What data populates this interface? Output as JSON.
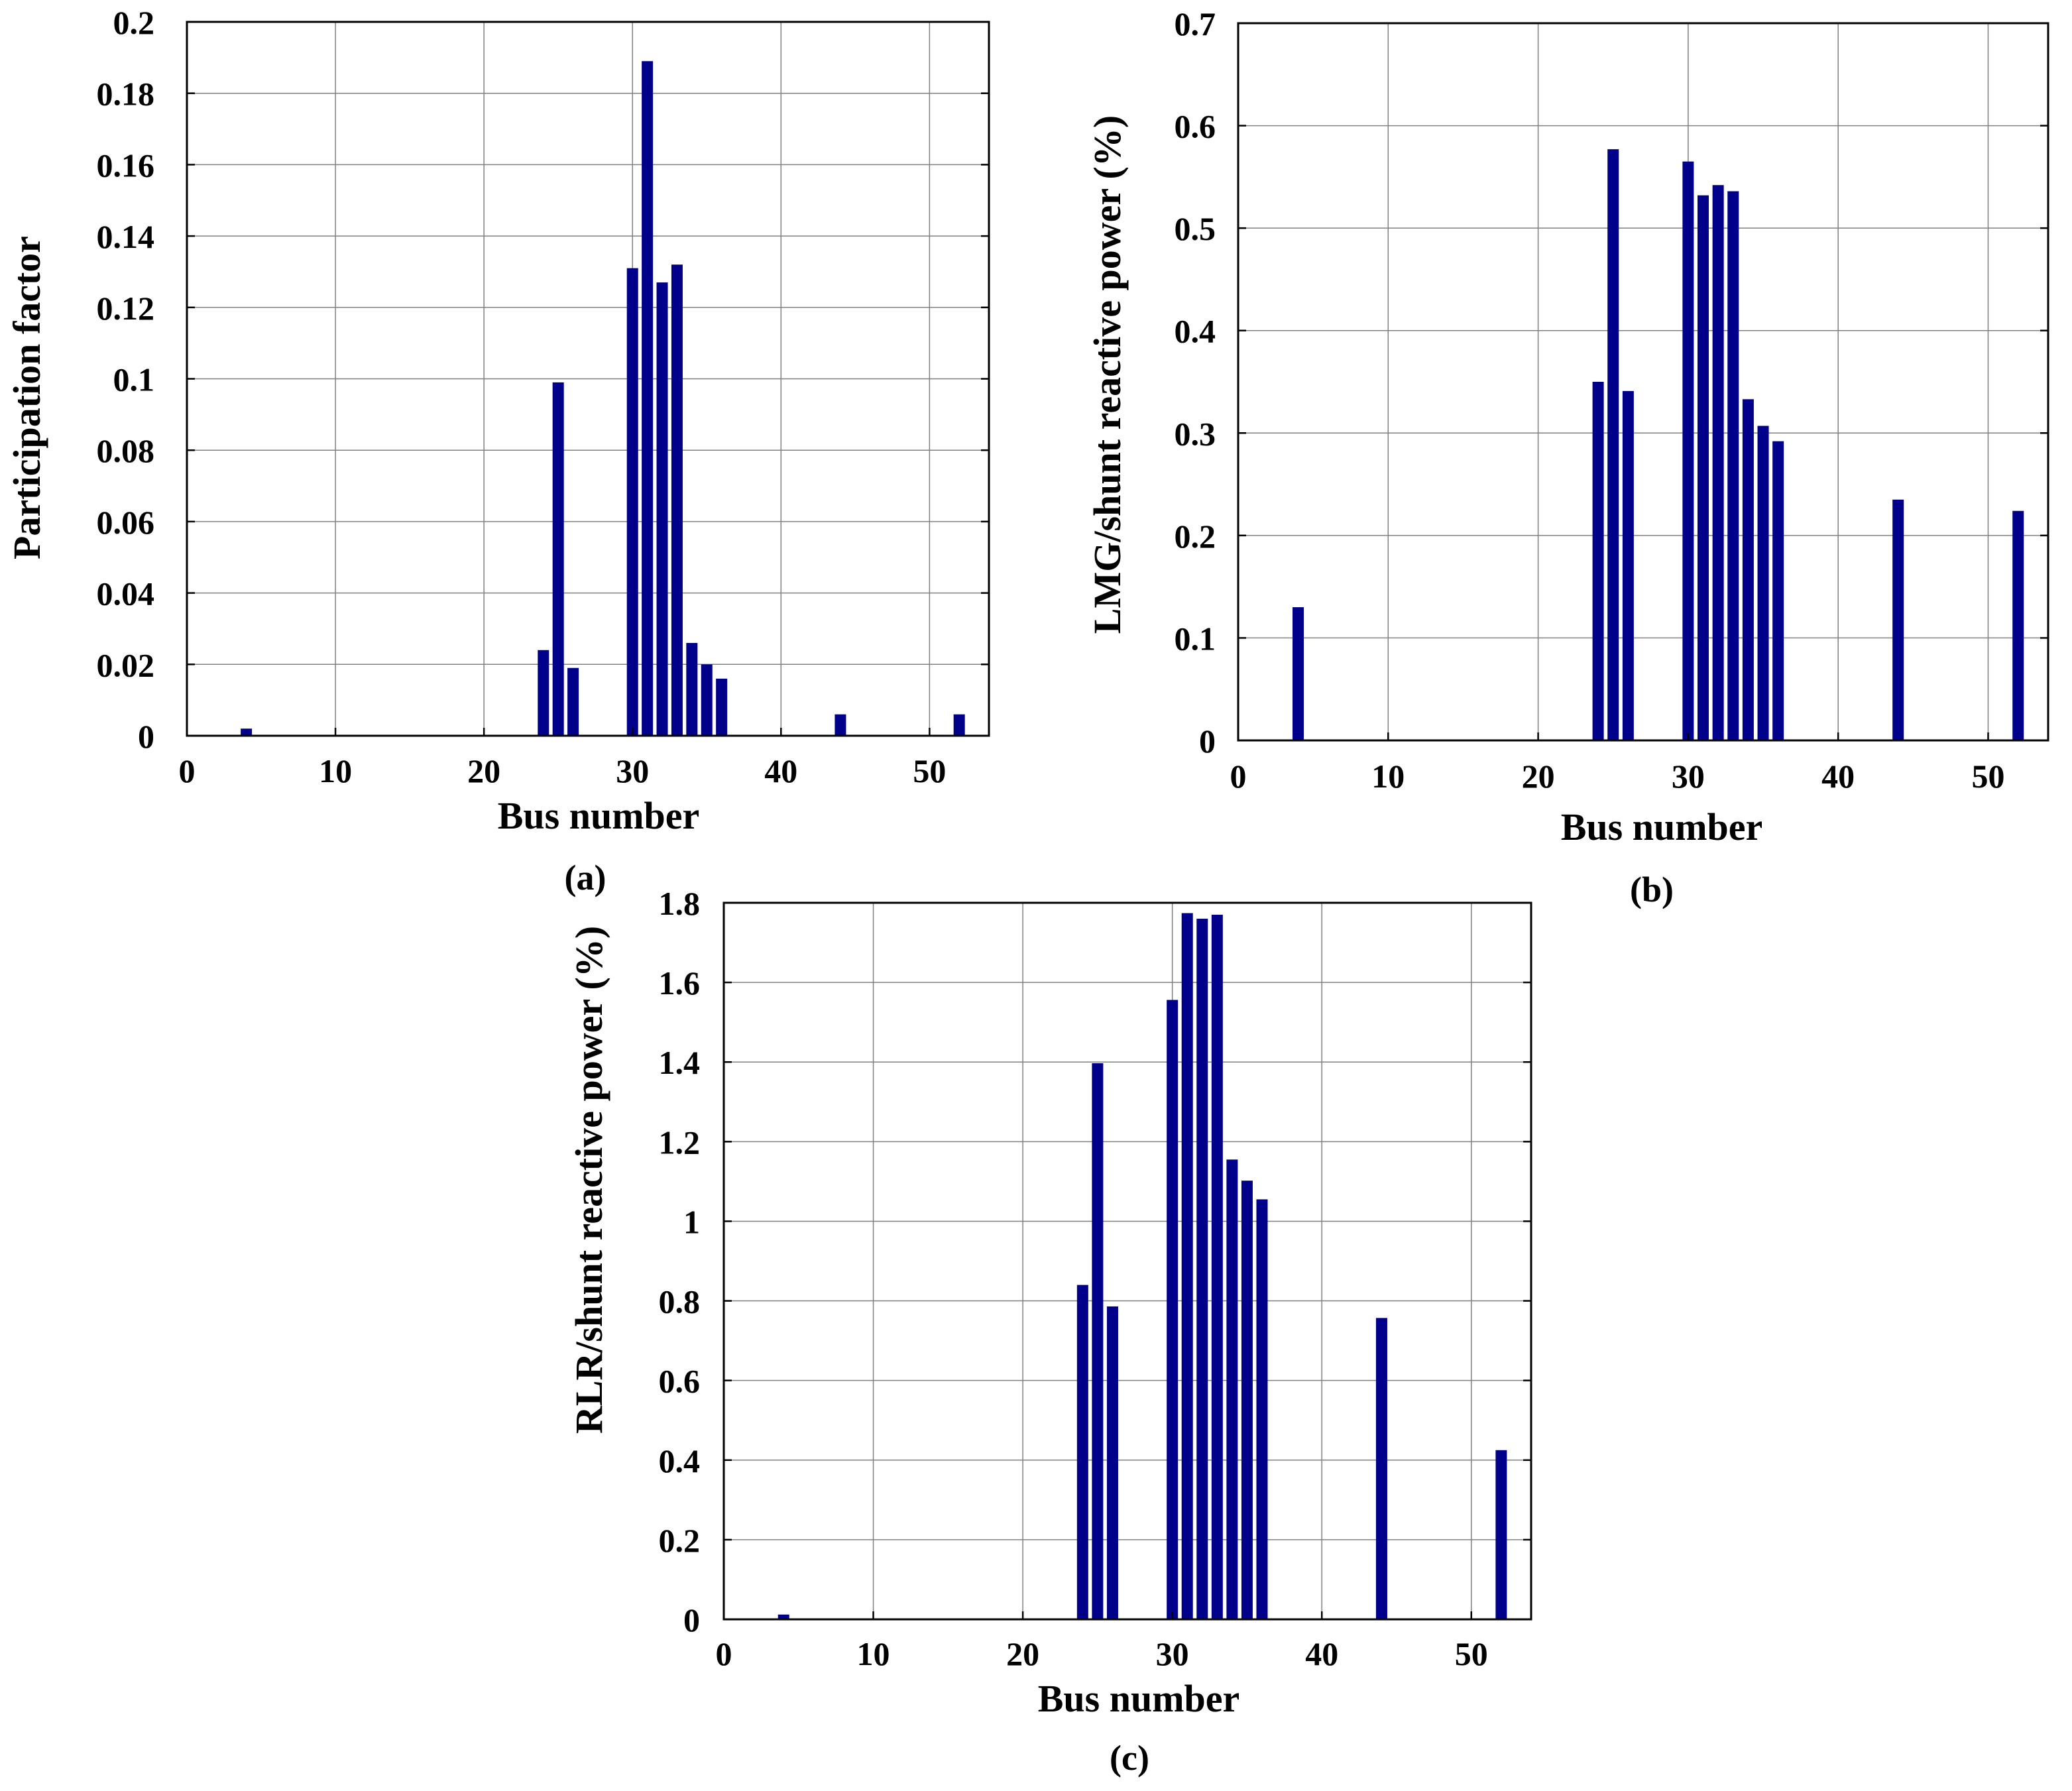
{
  "colors": {
    "bar": "#00008b",
    "grid": "#808080",
    "axis": "#000000"
  },
  "chart_data": [
    {
      "type": "bar",
      "caption": "(a)",
      "xlabel": "Bus number",
      "ylabel": "Participation factor",
      "xlim": [
        0,
        54
      ],
      "ylim": [
        0,
        0.2
      ],
      "xticks": [
        0,
        10,
        20,
        30,
        40,
        50
      ],
      "xtick_labels": [
        "0",
        "10",
        "20",
        "30",
        "40",
        "50"
      ],
      "yticks": [
        0,
        0.02,
        0.04,
        0.06,
        0.08,
        0.1,
        0.12,
        0.14,
        0.16,
        0.18,
        0.2
      ],
      "ytick_labels": [
        "0",
        "0.02",
        "0.04",
        "0.06",
        "0.08",
        "0.1",
        "0.12",
        "0.14",
        "0.16",
        "0.18",
        "0.2"
      ],
      "grid": true,
      "bars": [
        {
          "bus": 4,
          "value": 0.002
        },
        {
          "bus": 24,
          "value": 0.024
        },
        {
          "bus": 25,
          "value": 0.099
        },
        {
          "bus": 26,
          "value": 0.019
        },
        {
          "bus": 30,
          "value": 0.131
        },
        {
          "bus": 31,
          "value": 0.189
        },
        {
          "bus": 32,
          "value": 0.127
        },
        {
          "bus": 33,
          "value": 0.132
        },
        {
          "bus": 34,
          "value": 0.026
        },
        {
          "bus": 35,
          "value": 0.02
        },
        {
          "bus": 36,
          "value": 0.016
        },
        {
          "bus": 44,
          "value": 0.006
        },
        {
          "bus": 52,
          "value": 0.006
        }
      ]
    },
    {
      "type": "bar",
      "caption": "(b)",
      "xlabel": "Bus number",
      "ylabel": "LMG/shunt reactive power (%)",
      "xlim": [
        0,
        54
      ],
      "ylim": [
        0,
        0.7
      ],
      "xticks": [
        0,
        10,
        20,
        30,
        40,
        50
      ],
      "xtick_labels": [
        "0",
        "10",
        "20",
        "30",
        "40",
        "50"
      ],
      "yticks": [
        0,
        0.1,
        0.2,
        0.3,
        0.4,
        0.5,
        0.6,
        0.7
      ],
      "ytick_labels": [
        "0",
        "0.1",
        "0.2",
        "0.3",
        "0.4",
        "0.5",
        "0.6",
        "0.7"
      ],
      "grid": true,
      "bars": [
        {
          "bus": 4,
          "value": 0.13
        },
        {
          "bus": 24,
          "value": 0.35
        },
        {
          "bus": 25,
          "value": 0.577
        },
        {
          "bus": 26,
          "value": 0.341
        },
        {
          "bus": 30,
          "value": 0.565
        },
        {
          "bus": 31,
          "value": 0.532
        },
        {
          "bus": 32,
          "value": 0.542
        },
        {
          "bus": 33,
          "value": 0.536
        },
        {
          "bus": 34,
          "value": 0.333
        },
        {
          "bus": 35,
          "value": 0.307
        },
        {
          "bus": 36,
          "value": 0.292
        },
        {
          "bus": 44,
          "value": 0.235
        },
        {
          "bus": 52,
          "value": 0.224
        }
      ]
    },
    {
      "type": "bar",
      "caption": "(c)",
      "xlabel": "Bus number",
      "ylabel": "RLR/shunt reactive power (%)",
      "xlim": [
        0,
        54
      ],
      "ylim": [
        0,
        1.8
      ],
      "xticks": [
        0,
        10,
        20,
        30,
        40,
        50
      ],
      "xtick_labels": [
        "0",
        "10",
        "20",
        "30",
        "40",
        "50"
      ],
      "yticks": [
        0,
        0.2,
        0.4,
        0.6,
        0.8,
        1.0,
        1.2,
        1.4,
        1.6,
        1.8
      ],
      "ytick_labels": [
        "0",
        "0.2",
        "0.4",
        "0.6",
        "0.8",
        "1",
        "1.2",
        "1.4",
        "1.6",
        "1.8"
      ],
      "grid": true,
      "bars": [
        {
          "bus": 4,
          "value": 0.012
        },
        {
          "bus": 24,
          "value": 0.84
        },
        {
          "bus": 25,
          "value": 1.397
        },
        {
          "bus": 26,
          "value": 0.786
        },
        {
          "bus": 30,
          "value": 1.556
        },
        {
          "bus": 31,
          "value": 1.774
        },
        {
          "bus": 32,
          "value": 1.76
        },
        {
          "bus": 33,
          "value": 1.77
        },
        {
          "bus": 34,
          "value": 1.155
        },
        {
          "bus": 35,
          "value": 1.102
        },
        {
          "bus": 36,
          "value": 1.055
        },
        {
          "bus": 44,
          "value": 0.757
        },
        {
          "bus": 52,
          "value": 0.425
        }
      ]
    }
  ]
}
